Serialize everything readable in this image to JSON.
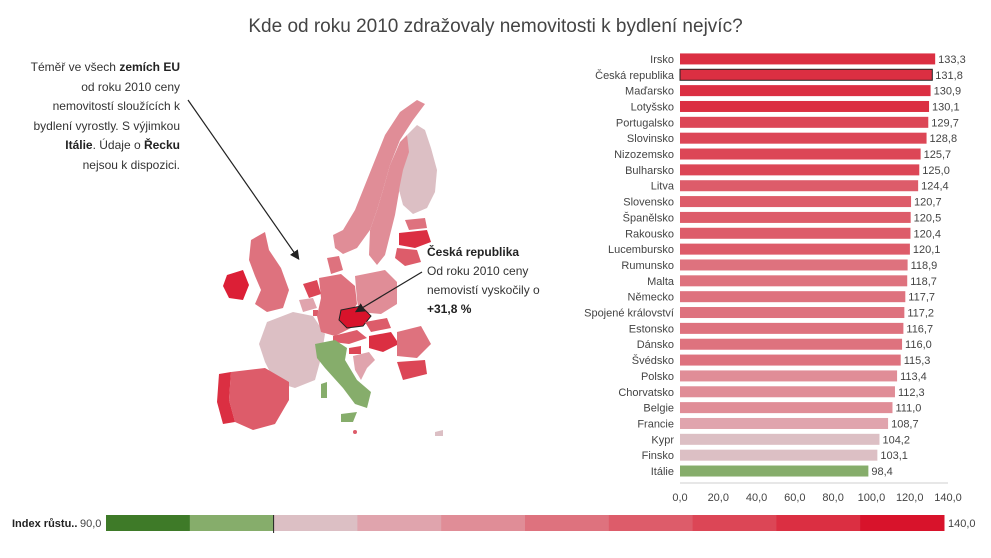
{
  "title": "Kde od roku 2010 zdražovaly nemovitosti k bydlení nejvíc?",
  "annotation_left": {
    "t1": "Téměř ve všech ",
    "b1": "zemích EU",
    "t2": " od roku 2010 ceny nemovitostí sloužících k bydlení vyrostly. S výjimkou ",
    "b2": "Itálie",
    "t3": ". Údaje o ",
    "b3": "Řecku",
    "t4": " nejsou k dispozici."
  },
  "annotation_right": {
    "heading": "Česká republika",
    "text": "Od roku 2010 ceny nemovistí vyskočily o ",
    "value": "+31,8 %"
  },
  "legend": {
    "label": "Index růstu..",
    "min_label": "90,0",
    "max_label": "140,0",
    "colors": [
      "#3e7a28",
      "#86ad6b",
      "#dcbfc4",
      "#e0a4ad",
      "#e08d97",
      "#de727e",
      "#dd5c6a",
      "#dc4656",
      "#db2f42",
      "#d8132b"
    ]
  },
  "chart_data": {
    "type": "bar",
    "orientation": "horizontal",
    "categories": [
      "Irsko",
      "Česká republika",
      "Maďarsko",
      "Lotyšsko",
      "Portugalsko",
      "Slovinsko",
      "Nizozemsko",
      "Bulharsko",
      "Litva",
      "Slovensko",
      "Španělsko",
      "Rakousko",
      "Lucembursko",
      "Rumunsko",
      "Malta",
      "Německo",
      "Spojené království",
      "Estonsko",
      "Dánsko",
      "Švédsko",
      "Polsko",
      "Chorvatsko",
      "Belgie",
      "Francie",
      "Kypr",
      "Finsko",
      "Itálie"
    ],
    "values": [
      133.3,
      131.8,
      130.9,
      130.1,
      129.7,
      128.8,
      125.7,
      125.0,
      124.4,
      120.7,
      120.5,
      120.4,
      120.1,
      118.9,
      118.7,
      117.7,
      117.2,
      116.7,
      116.0,
      115.3,
      113.4,
      112.3,
      111.0,
      108.7,
      104.2,
      103.1,
      98.4
    ],
    "value_labels": [
      "133,3",
      "131,8",
      "130,9",
      "130,1",
      "129,7",
      "128,8",
      "125,7",
      "125,0",
      "124,4",
      "120,7",
      "120,5",
      "120,4",
      "120,1",
      "118,9",
      "118,7",
      "117,7",
      "117,2",
      "116,7",
      "116,0",
      "115,3",
      "113,4",
      "112,3",
      "111,0",
      "108,7",
      "104,2",
      "103,1",
      "98,4"
    ],
    "xticks": [
      "0,0",
      "20,0",
      "40,0",
      "60,0",
      "80,0",
      "100,0",
      "120,0",
      "140,0"
    ],
    "xlim": [
      0,
      140
    ],
    "highlighted": "Česká republika",
    "color_scale": {
      "min": 90,
      "max": 140
    }
  }
}
